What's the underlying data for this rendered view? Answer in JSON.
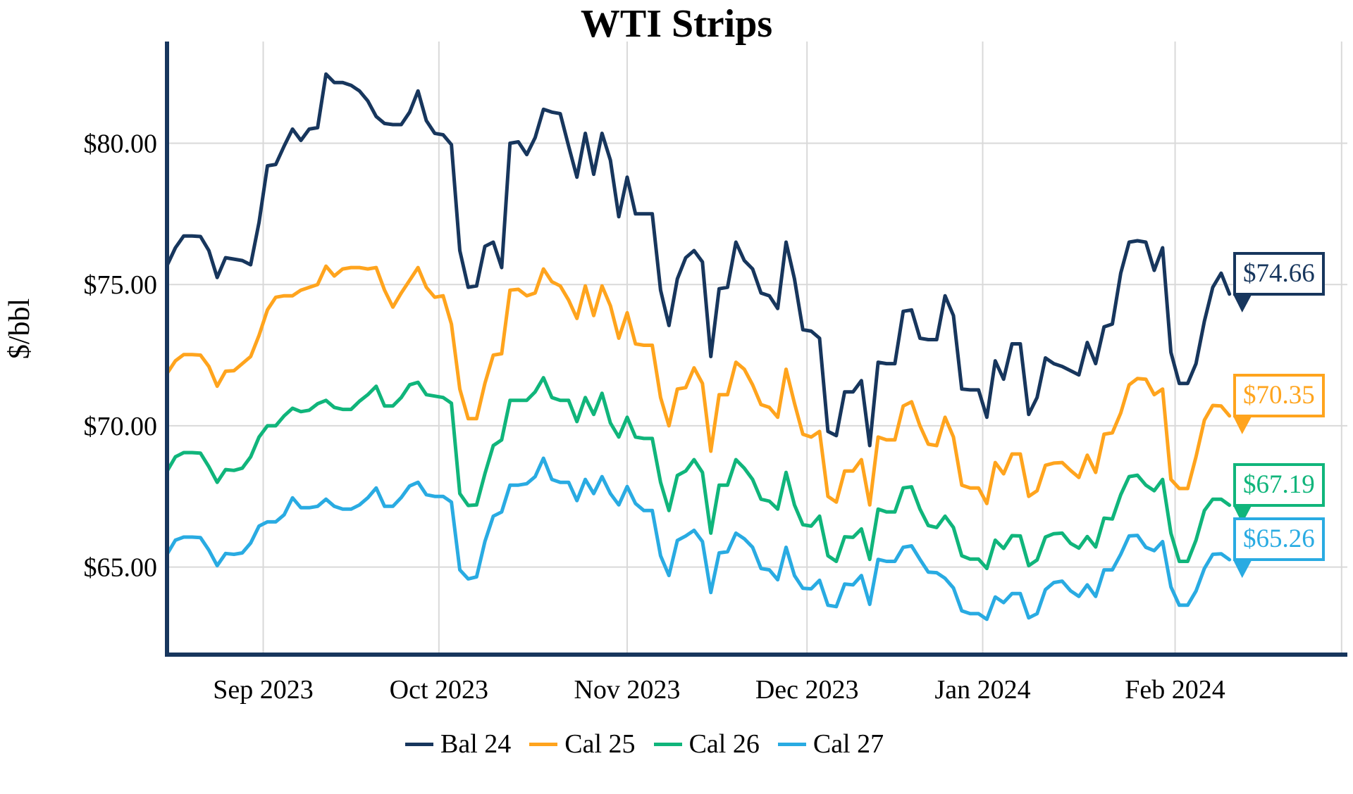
{
  "chart_data": {
    "type": "line",
    "title": "WTI Strips",
    "xlabel": "",
    "ylabel": "$/bbl",
    "ylim": [
      61.9,
      83.6
    ],
    "x_domain": [
      0,
      140.5
    ],
    "grid": "on",
    "legend_position": "bottom-center",
    "y_ticks": [
      {
        "value": 80,
        "label": "$80.00"
      },
      {
        "value": 75,
        "label": "$75.00"
      },
      {
        "value": 70,
        "label": "$70.00"
      },
      {
        "value": 65,
        "label": "$65.00"
      }
    ],
    "x_ticks": [
      {
        "pos": 11.5,
        "label": "Sep 2023"
      },
      {
        "pos": 32.5,
        "label": "Oct 2023"
      },
      {
        "pos": 55,
        "label": "Nov 2023"
      },
      {
        "pos": 76.5,
        "label": "Dec 2023"
      },
      {
        "pos": 97.5,
        "label": "Jan 2024"
      },
      {
        "pos": 120.5,
        "label": "Feb 2024"
      },
      {
        "pos": 140.4,
        "label": ""
      }
    ],
    "colors": {
      "grid": "#d9d9d9",
      "axis": "#17365d",
      "background": "#ffffff"
    },
    "series": [
      {
        "name": "Bal 24",
        "color": "#17365d",
        "end_label": "$74.66",
        "values": [
          75.67,
          76.3,
          76.72,
          76.72,
          76.7,
          76.2,
          75.25,
          75.95,
          75.9,
          75.85,
          75.7,
          77.2,
          79.2,
          79.25,
          79.9,
          80.5,
          80.1,
          80.5,
          80.55,
          82.45,
          82.15,
          82.15,
          82.05,
          81.85,
          81.5,
          80.95,
          80.7,
          80.66,
          80.66,
          81.1,
          81.85,
          80.8,
          80.35,
          80.3,
          79.95,
          76.2,
          74.9,
          74.95,
          76.35,
          76.5,
          75.6,
          80.0,
          80.05,
          79.6,
          80.2,
          81.2,
          81.1,
          81.05,
          79.9,
          78.8,
          80.35,
          78.9,
          80.35,
          79.4,
          77.4,
          78.8,
          77.5,
          77.5,
          77.5,
          74.8,
          73.55,
          75.2,
          75.95,
          76.2,
          75.8,
          72.45,
          74.85,
          74.9,
          76.5,
          75.85,
          75.55,
          74.7,
          74.6,
          74.15,
          76.5,
          75.2,
          73.4,
          73.35,
          73.1,
          69.8,
          69.65,
          71.2,
          71.2,
          71.6,
          69.3,
          72.25,
          72.2,
          72.2,
          74.05,
          74.1,
          73.1,
          73.05,
          73.05,
          74.6,
          73.9,
          71.3,
          71.27,
          71.27,
          70.3,
          72.3,
          71.65,
          72.9,
          72.9,
          70.4,
          71.0,
          72.4,
          72.2,
          72.1,
          71.95,
          71.8,
          72.95,
          72.2,
          73.5,
          73.6,
          75.4,
          76.5,
          76.55,
          76.5,
          75.5,
          76.3,
          72.6,
          71.5,
          71.5,
          72.2,
          73.7,
          74.9,
          75.4,
          74.66
        ]
      },
      {
        "name": "Cal 25",
        "color": "#ffa41d",
        "end_label": "$70.35",
        "values": [
          71.85,
          72.3,
          72.52,
          72.52,
          72.5,
          72.1,
          71.4,
          71.93,
          71.95,
          72.2,
          72.45,
          73.2,
          74.1,
          74.55,
          74.6,
          74.6,
          74.8,
          74.9,
          75.0,
          75.65,
          75.3,
          75.55,
          75.6,
          75.6,
          75.55,
          75.6,
          74.8,
          74.2,
          74.7,
          75.15,
          75.6,
          74.9,
          74.55,
          74.6,
          73.6,
          71.3,
          70.25,
          70.25,
          71.5,
          72.5,
          72.55,
          74.8,
          74.83,
          74.6,
          74.7,
          75.55,
          75.1,
          74.95,
          74.45,
          73.8,
          74.95,
          73.9,
          74.95,
          74.25,
          73.1,
          74.0,
          72.9,
          72.85,
          72.85,
          71.0,
          70.0,
          71.3,
          71.35,
          72.05,
          71.5,
          69.1,
          71.1,
          71.1,
          72.25,
          72.0,
          71.45,
          70.75,
          70.65,
          70.3,
          72.0,
          70.8,
          69.7,
          69.6,
          69.8,
          67.5,
          67.3,
          68.4,
          68.4,
          68.8,
          67.2,
          69.6,
          69.5,
          69.5,
          70.7,
          70.85,
          70.0,
          69.35,
          69.3,
          70.3,
          69.6,
          67.9,
          67.8,
          67.8,
          67.25,
          68.7,
          68.3,
          69.0,
          69.0,
          67.5,
          67.7,
          68.6,
          68.68,
          68.7,
          68.42,
          68.17,
          68.96,
          68.35,
          69.7,
          69.75,
          70.45,
          71.45,
          71.67,
          71.65,
          71.1,
          71.3,
          68.1,
          67.78,
          67.78,
          68.9,
          70.2,
          70.72,
          70.7,
          70.35
        ]
      },
      {
        "name": "Cal 26",
        "color": "#10b57b",
        "end_label": "$67.19",
        "values": [
          68.39,
          68.9,
          69.05,
          69.05,
          69.03,
          68.55,
          68.0,
          68.45,
          68.42,
          68.5,
          68.9,
          69.6,
          70.0,
          70.0,
          70.35,
          70.62,
          70.5,
          70.55,
          70.78,
          70.9,
          70.65,
          70.58,
          70.58,
          70.87,
          71.1,
          71.4,
          70.7,
          70.7,
          71.0,
          71.45,
          71.54,
          71.1,
          71.05,
          71.0,
          70.8,
          67.6,
          67.18,
          67.2,
          68.3,
          69.3,
          69.5,
          70.9,
          70.9,
          70.9,
          71.2,
          71.7,
          71.0,
          70.9,
          70.9,
          70.15,
          71.0,
          70.4,
          71.15,
          70.1,
          69.6,
          70.3,
          69.6,
          69.55,
          69.55,
          68.0,
          67.0,
          68.24,
          68.4,
          68.8,
          68.35,
          66.2,
          67.9,
          67.9,
          68.8,
          68.5,
          68.1,
          67.4,
          67.33,
          67.05,
          68.35,
          67.2,
          66.5,
          66.45,
          66.8,
          65.4,
          65.2,
          66.07,
          66.05,
          66.35,
          65.27,
          67.05,
          66.95,
          66.95,
          67.8,
          67.84,
          67.05,
          66.47,
          66.4,
          66.8,
          66.4,
          65.4,
          65.28,
          65.28,
          64.95,
          65.95,
          65.66,
          66.11,
          66.1,
          65.05,
          65.25,
          66.06,
          66.18,
          66.2,
          65.84,
          65.67,
          66.08,
          65.71,
          66.73,
          66.7,
          67.56,
          68.2,
          68.25,
          67.9,
          67.7,
          68.1,
          66.2,
          65.2,
          65.2,
          65.95,
          67.0,
          67.4,
          67.4,
          67.19
        ]
      },
      {
        "name": "Cal 27",
        "color": "#29abe2",
        "end_label": "$65.26",
        "values": [
          65.45,
          65.95,
          66.06,
          66.06,
          66.04,
          65.6,
          65.05,
          65.48,
          65.45,
          65.5,
          65.85,
          66.45,
          66.6,
          66.6,
          66.85,
          67.45,
          67.1,
          67.1,
          67.15,
          67.4,
          67.15,
          67.05,
          67.05,
          67.2,
          67.45,
          67.8,
          67.15,
          67.15,
          67.46,
          67.87,
          68.0,
          67.56,
          67.5,
          67.5,
          67.3,
          64.9,
          64.58,
          64.65,
          65.9,
          66.8,
          66.95,
          67.9,
          67.9,
          67.95,
          68.2,
          68.85,
          68.1,
          68.0,
          68.0,
          67.35,
          68.1,
          67.6,
          68.2,
          67.6,
          67.2,
          67.85,
          67.25,
          67.0,
          67.0,
          65.4,
          64.7,
          65.94,
          66.1,
          66.3,
          65.9,
          64.1,
          65.5,
          65.54,
          66.2,
          66.0,
          65.7,
          64.95,
          64.9,
          64.55,
          65.7,
          64.7,
          64.25,
          64.23,
          64.53,
          63.65,
          63.6,
          64.4,
          64.37,
          64.7,
          63.68,
          65.27,
          65.2,
          65.2,
          65.7,
          65.75,
          65.27,
          64.82,
          64.8,
          64.6,
          64.26,
          63.45,
          63.35,
          63.35,
          63.15,
          63.94,
          63.74,
          64.06,
          64.06,
          63.2,
          63.35,
          64.2,
          64.45,
          64.5,
          64.16,
          63.96,
          64.37,
          63.96,
          64.9,
          64.9,
          65.45,
          66.1,
          66.12,
          65.7,
          65.58,
          65.9,
          64.3,
          63.65,
          63.65,
          64.15,
          64.95,
          65.45,
          65.47,
          65.26
        ]
      }
    ]
  }
}
